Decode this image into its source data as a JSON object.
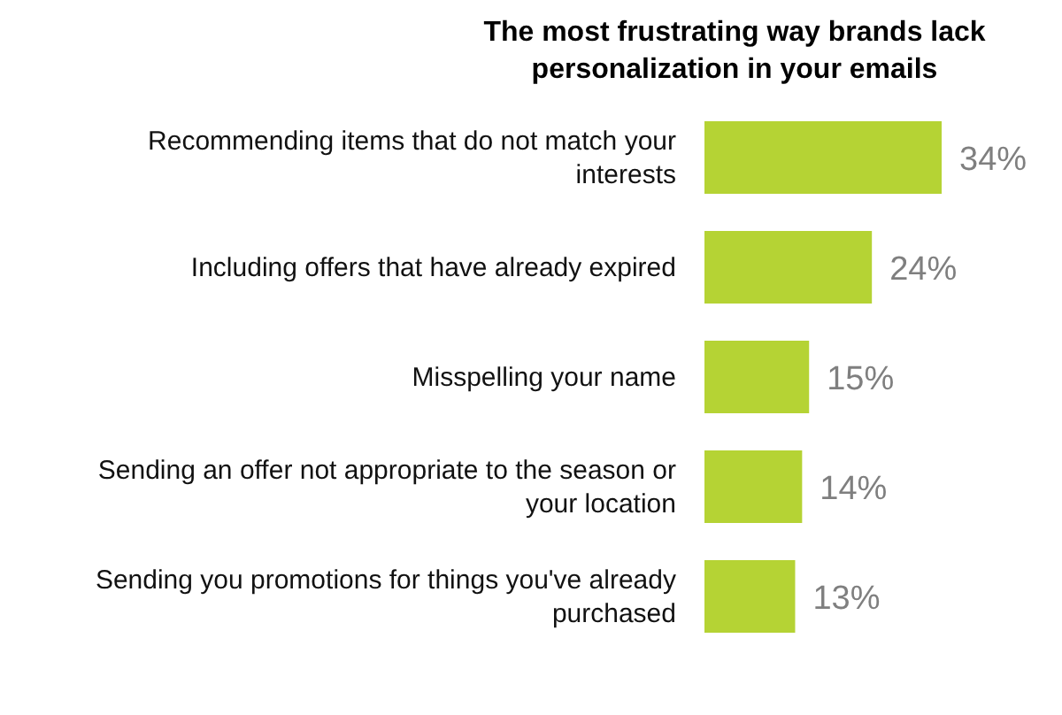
{
  "chart_data": {
    "type": "bar",
    "orientation": "horizontal",
    "title": "The most frustrating way brands lack personalization in your emails",
    "categories": [
      "Recommending items that do not match your interests",
      "Including offers that have already expired",
      "Misspelling your name",
      "Sending an offer not appropriate to the season or your location",
      "Sending you promotions for things you've already purchased"
    ],
    "values": [
      34,
      24,
      15,
      14,
      13
    ],
    "value_labels": [
      "34%",
      "24%",
      "15%",
      "14%",
      "13%"
    ],
    "color": "#b5d334",
    "grid": false,
    "legend": false
  }
}
